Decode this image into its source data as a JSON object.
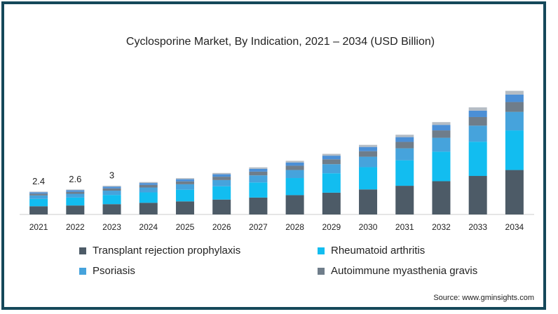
{
  "chart_data": {
    "type": "stacked_bar",
    "title": "Cyclosporine Market, By Indication, 2021 – 2034 (USD Billion)",
    "categories": [
      "2021",
      "2022",
      "2023",
      "2024",
      "2025",
      "2026",
      "2027",
      "2028",
      "2029",
      "2030",
      "2031",
      "2032",
      "2033",
      "2034"
    ],
    "series": [
      {
        "name": "Transplant rejection prophylaxis",
        "color": "#4d5b67",
        "values": [
          0.86,
          0.94,
          1.08,
          1.22,
          1.37,
          1.56,
          1.77,
          2.02,
          2.28,
          2.62,
          3.0,
          3.48,
          4.03,
          4.65
        ]
      },
      {
        "name": "Rheumatoid arthritis",
        "color": "#12bdf0",
        "values": [
          0.77,
          0.83,
          0.96,
          1.09,
          1.22,
          1.39,
          1.58,
          1.79,
          2.03,
          2.33,
          2.67,
          3.09,
          3.58,
          4.14
        ]
      },
      {
        "name": "Psoriasis",
        "color": "#46a3dc",
        "values": [
          0.36,
          0.39,
          0.45,
          0.51,
          0.57,
          0.65,
          0.74,
          0.84,
          0.95,
          1.09,
          1.25,
          1.45,
          1.68,
          1.94
        ]
      },
      {
        "name": "Autoimmune myasthenia gravis",
        "color": "#6f7d8a",
        "values": [
          0.19,
          0.21,
          0.24,
          0.27,
          0.3,
          0.35,
          0.39,
          0.45,
          0.51,
          0.58,
          0.67,
          0.77,
          0.9,
          1.03
        ]
      },
      {
        "color": "#4b8fd6",
        "values": [
          0.14,
          0.16,
          0.18,
          0.2,
          0.23,
          0.26,
          0.3,
          0.34,
          0.38,
          0.44,
          0.5,
          0.58,
          0.67,
          0.78
        ]
      },
      {
        "color": "#b4bcc4",
        "values": [
          0.07,
          0.08,
          0.09,
          0.1,
          0.11,
          0.13,
          0.15,
          0.17,
          0.19,
          0.22,
          0.25,
          0.29,
          0.34,
          0.39
        ]
      }
    ],
    "totals": [
      2.4,
      2.6,
      3
    ],
    "ylim": [
      0,
      14
    ],
    "source": "Source: www.gminsights.com"
  }
}
